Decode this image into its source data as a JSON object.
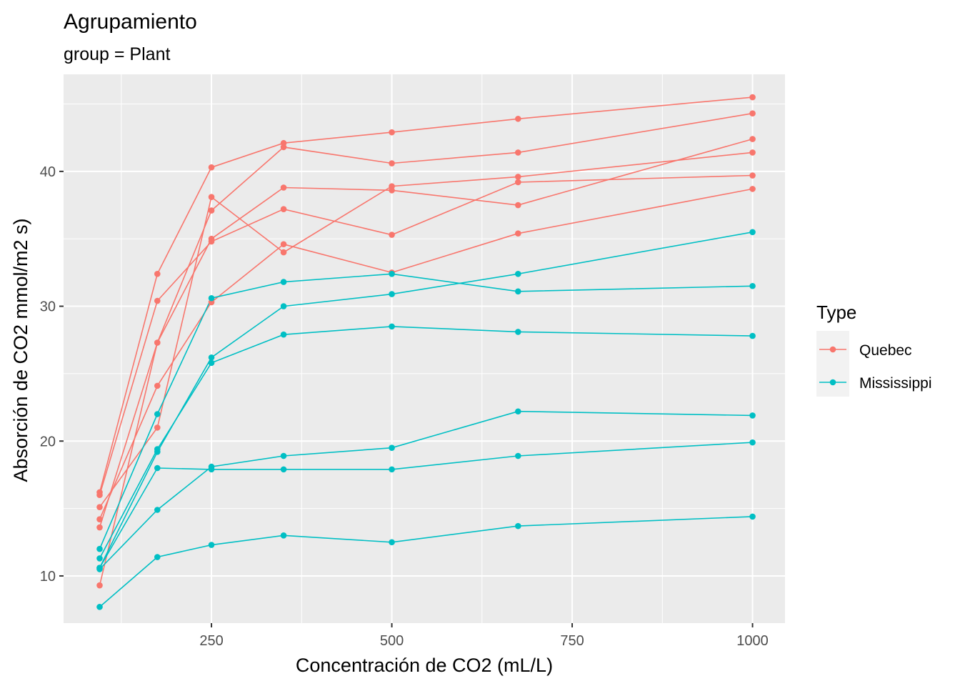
{
  "chart_data": {
    "type": "line",
    "title": "Agrupamiento",
    "subtitle": "group = Plant",
    "xlabel": "Concentración de CO2 (mL/L)",
    "ylabel": "Absorción de CO2 mmol/m2 s)",
    "xlim": [
      45,
      1045
    ],
    "ylim": [
      6.5,
      47.2
    ],
    "x_ticks": [
      250,
      500,
      750,
      1000
    ],
    "y_ticks": [
      10,
      20,
      30,
      40
    ],
    "grid": true,
    "legend": {
      "title": "Type",
      "position": "right",
      "entries": [
        {
          "label": "Quebec",
          "color": "#F8766D"
        },
        {
          "label": "Mississippi",
          "color": "#00BFC4"
        }
      ]
    },
    "x": [
      95,
      175,
      250,
      350,
      500,
      675,
      1000
    ],
    "series": [
      {
        "type": "Quebec",
        "color": "#F8766D",
        "values": [
          16.0,
          30.4,
          34.8,
          37.2,
          35.3,
          39.2,
          39.7
        ]
      },
      {
        "type": "Quebec",
        "color": "#F8766D",
        "values": [
          13.6,
          27.3,
          37.1,
          41.8,
          40.6,
          41.4,
          44.3
        ]
      },
      {
        "type": "Quebec",
        "color": "#F8766D",
        "values": [
          16.2,
          32.4,
          40.3,
          42.1,
          42.9,
          43.9,
          45.5
        ]
      },
      {
        "type": "Quebec",
        "color": "#F8766D",
        "values": [
          14.2,
          24.1,
          30.3,
          34.6,
          32.5,
          35.4,
          38.7
        ]
      },
      {
        "type": "Quebec",
        "color": "#F8766D",
        "values": [
          9.3,
          27.3,
          35.0,
          38.8,
          38.6,
          37.5,
          42.4
        ]
      },
      {
        "type": "Quebec",
        "color": "#F8766D",
        "values": [
          15.1,
          21.0,
          38.1,
          34.0,
          38.9,
          39.6,
          41.4
        ]
      },
      {
        "type": "Mississippi",
        "color": "#00BFC4",
        "values": [
          10.6,
          19.2,
          26.2,
          30.0,
          30.9,
          32.4,
          35.5
        ]
      },
      {
        "type": "Mississippi",
        "color": "#00BFC4",
        "values": [
          12.0,
          22.0,
          30.6,
          31.8,
          32.4,
          31.1,
          31.5
        ]
      },
      {
        "type": "Mississippi",
        "color": "#00BFC4",
        "values": [
          11.3,
          19.4,
          25.8,
          27.9,
          28.5,
          28.1,
          27.8
        ]
      },
      {
        "type": "Mississippi",
        "color": "#00BFC4",
        "values": [
          10.5,
          14.9,
          18.1,
          18.9,
          19.5,
          22.2,
          21.9
        ]
      },
      {
        "type": "Mississippi",
        "color": "#00BFC4",
        "values": [
          7.7,
          11.4,
          12.3,
          13.0,
          12.5,
          13.7,
          14.4
        ]
      },
      {
        "type": "Mississippi",
        "color": "#00BFC4",
        "values": [
          10.6,
          18.0,
          17.9,
          17.9,
          17.9,
          18.9,
          19.9
        ]
      }
    ]
  }
}
